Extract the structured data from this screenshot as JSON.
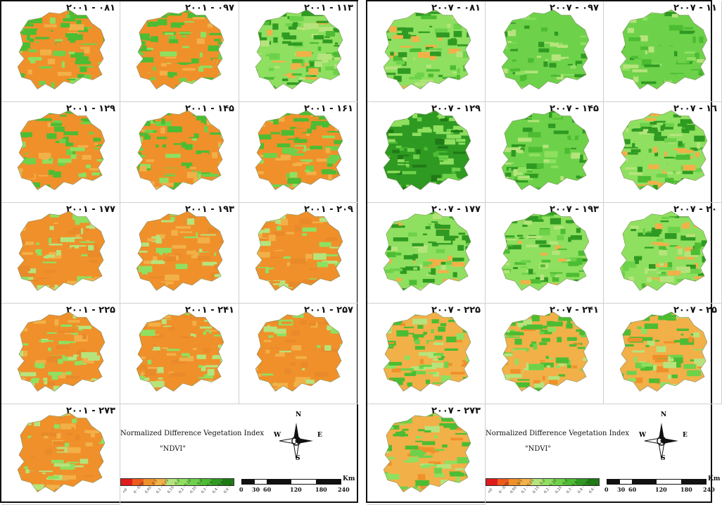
{
  "left_panel": {
    "maps": [
      {
        "label": "۲۰۰۱ - ۰۸۱",
        "ndvi": "low"
      },
      {
        "label": "۲۰۰۱ - ۰۹۷",
        "ndvi": "low"
      },
      {
        "label": "۲۰۰۱ - ۱۱۳",
        "ndvi": "mid"
      },
      {
        "label": "۲۰۰۱ - ۱۲۹",
        "ndvi": "low"
      },
      {
        "label": "۲۰۰۱ - ۱۴۵",
        "ndvi": "low"
      },
      {
        "label": "۲۰۰۱ - ۱۶۱",
        "ndvi": "low"
      },
      {
        "label": "۲۰۰۱ - ۱۷۷",
        "ndvi": "dry"
      },
      {
        "label": "۲۰۰۱ - ۱۹۳",
        "ndvi": "dry"
      },
      {
        "label": "۲۰۰۱ - ۲۰۹",
        "ndvi": "dry"
      },
      {
        "label": "۲۰۰۱ - ۲۲۵",
        "ndvi": "dry"
      },
      {
        "label": "۲۰۰۱ - ۲۴۱",
        "ndvi": "dry"
      },
      {
        "label": "۲۰۰۱ - ۲۵۷",
        "ndvi": "dry"
      },
      {
        "label": "۲۰۰۱ - ۲۷۳",
        "ndvi": "dry"
      }
    ]
  },
  "right_panel": {
    "maps": [
      {
        "label": "۲۰۰۷ - ۰۸۱",
        "ndvi": "mid"
      },
      {
        "label": "۲۰۰۷ - ۰۹۷",
        "ndvi": "high"
      },
      {
        "label": "۲۰۰۷ - ۱۱",
        "ndvi": "high"
      },
      {
        "label": "۲۰۰۷ - ۱۲۹",
        "ndvi": "veryhigh"
      },
      {
        "label": "۲۰۰۷ - ۱۴۵",
        "ndvi": "high"
      },
      {
        "label": "۲۰۰۷ - ۱٦",
        "ndvi": "mid"
      },
      {
        "label": "۲۰۰۷ - ۱۷۷",
        "ndvi": "mid"
      },
      {
        "label": "۲۰۰۷ - ۱۹۳",
        "ndvi": "mid"
      },
      {
        "label": "۲۰۰۷ - ۲۰",
        "ndvi": "mid"
      },
      {
        "label": "۲۰۰۷ - ۲۲۵",
        "ndvi": "midlow"
      },
      {
        "label": "۲۰۰۷ - ۲۴۱",
        "ndvi": "midlow"
      },
      {
        "label": "۲۰۰۷ - ۲۵",
        "ndvi": "midlow"
      },
      {
        "label": "۲۰۰۷ - ۲۷۳",
        "ndvi": "midlow"
      }
    ]
  },
  "legend": {
    "title": "Normalized Difference Vegetation Index",
    "subtitle": "\"NDVI\"",
    "classes": [
      {
        "label": "<0",
        "color": "#e01b1b"
      },
      {
        "label": "0 - 0.05",
        "color": "#ee5a1e"
      },
      {
        "label": "0.05 - 0.1",
        "color": "#f0902a"
      },
      {
        "label": "0.1 - 0.15",
        "color": "#f2b048"
      },
      {
        "label": "0.15 - 0.2",
        "color": "#b6e47c"
      },
      {
        "label": "0.2 - 0.25",
        "color": "#8fe060"
      },
      {
        "label": "0.25 - 0.3",
        "color": "#6dd24a"
      },
      {
        "label": "0.3 - 0.4",
        "color": "#4cbc33"
      },
      {
        "label": "0.4 - 0.6",
        "color": "#2f9a22"
      },
      {
        "label": "0.6 - 1",
        "color": "#1f7a16"
      }
    ]
  },
  "north_arrow": {
    "n": "N",
    "s": "S",
    "e": "E",
    "w": "W"
  },
  "scalebar": {
    "unit": "Km",
    "ticks": [
      "0",
      "30",
      "60",
      "120",
      "180",
      "240"
    ]
  }
}
